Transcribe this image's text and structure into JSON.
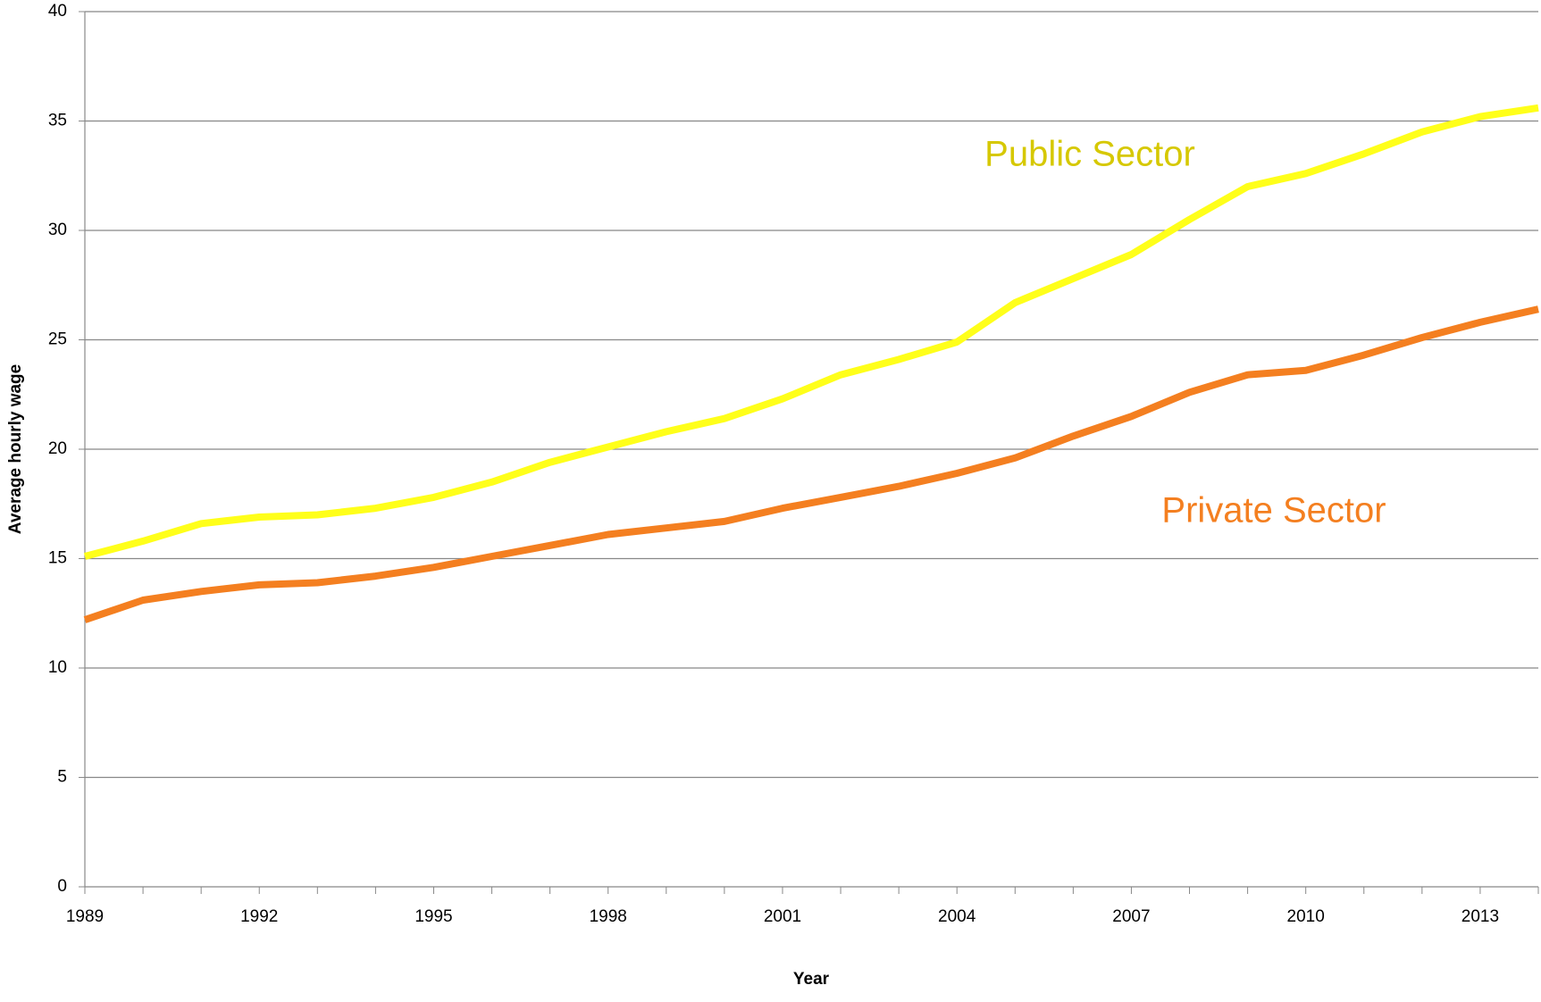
{
  "chart_data": {
    "type": "line",
    "x_label": "Year",
    "y_label": "Average hourly wage",
    "categories": [
      "1989",
      null,
      null,
      "1992",
      null,
      null,
      "1995",
      null,
      null,
      "1998",
      null,
      null,
      "2001",
      null,
      null,
      "2004",
      null,
      null,
      "2007",
      null,
      null,
      "2010",
      null,
      null,
      "2013",
      null
    ],
    "series": [
      {
        "name": "Public Sector",
        "color": "#ffff1a",
        "label_color": "#d6c800",
        "values": [
          15.1,
          15.8,
          16.6,
          16.9,
          17.0,
          17.3,
          17.8,
          18.5,
          19.4,
          20.1,
          20.8,
          21.4,
          22.3,
          23.4,
          24.1,
          24.9,
          26.7,
          27.8,
          28.9,
          30.5,
          32.0,
          32.6,
          33.5,
          34.5,
          35.2,
          35.6
        ]
      },
      {
        "name": "Private Sector",
        "color": "#f47f20",
        "label_color": "#f47f20",
        "values": [
          12.2,
          13.1,
          13.5,
          13.8,
          13.9,
          14.2,
          14.6,
          15.1,
          15.6,
          16.1,
          16.4,
          16.7,
          17.3,
          17.8,
          18.3,
          18.9,
          19.6,
          20.6,
          21.5,
          22.6,
          23.4,
          23.6,
          24.3,
          25.1,
          25.8,
          26.4
        ]
      }
    ],
    "ylim": [
      0,
      40
    ],
    "yticks": [
      0,
      5,
      10,
      15,
      20,
      25,
      30,
      35,
      40
    ],
    "grid": true
  }
}
